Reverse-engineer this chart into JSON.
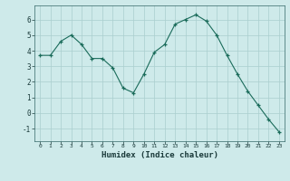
{
  "x": [
    0,
    1,
    2,
    3,
    4,
    5,
    6,
    7,
    8,
    9,
    10,
    11,
    12,
    13,
    14,
    15,
    16,
    17,
    18,
    19,
    20,
    21,
    22,
    23
  ],
  "y": [
    3.7,
    3.7,
    4.6,
    5.0,
    4.4,
    3.5,
    3.5,
    2.9,
    1.6,
    1.3,
    2.5,
    3.9,
    4.4,
    5.7,
    6.0,
    6.3,
    5.9,
    5.0,
    3.7,
    2.5,
    1.4,
    0.5,
    -0.4,
    -1.2
  ],
  "xlabel": "Humidex (Indice chaleur)",
  "xlim": [
    -0.5,
    23.5
  ],
  "ylim": [
    -1.8,
    6.9
  ],
  "yticks": [
    -1,
    0,
    1,
    2,
    3,
    4,
    5,
    6
  ],
  "xticks": [
    0,
    1,
    2,
    3,
    4,
    5,
    6,
    7,
    8,
    9,
    10,
    11,
    12,
    13,
    14,
    15,
    16,
    17,
    18,
    19,
    20,
    21,
    22,
    23
  ],
  "line_color": "#1a6b5a",
  "marker": "+",
  "bg_color": "#ceeaea",
  "grid_color": "#aacece",
  "spine_color": "#336666"
}
